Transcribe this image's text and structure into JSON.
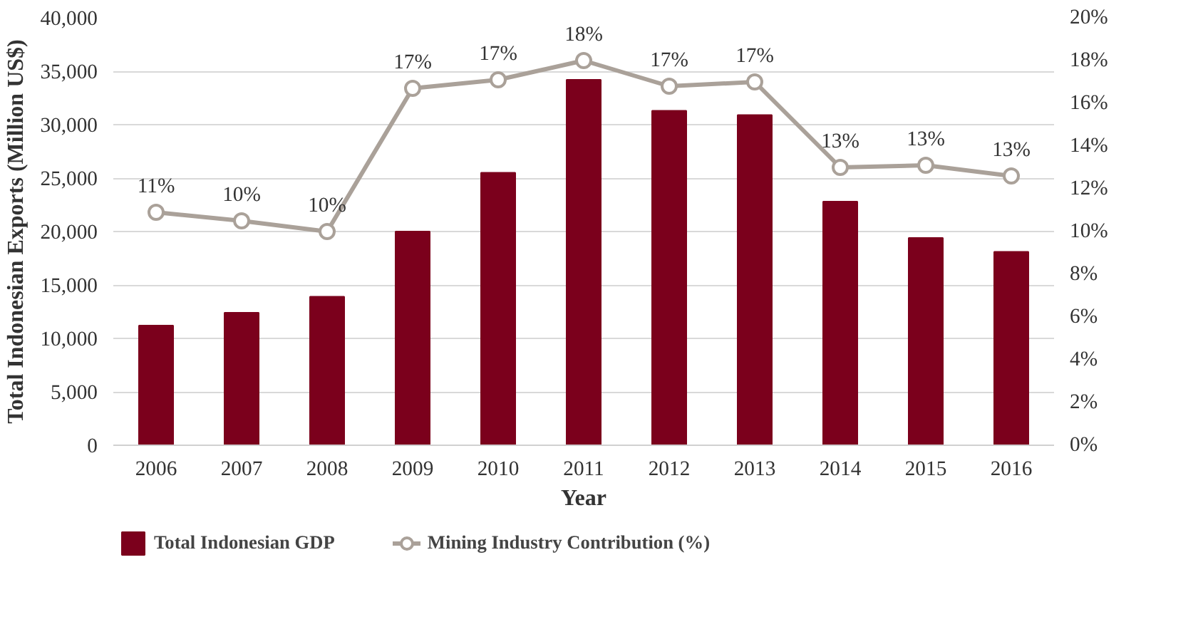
{
  "chart_data": {
    "type": "bar",
    "xlabel": "Year",
    "ylabel": "Total Indonesian Exports (Million US$)",
    "categories": [
      "2006",
      "2007",
      "2008",
      "2009",
      "2010",
      "2011",
      "2012",
      "2013",
      "2014",
      "2015",
      "2016"
    ],
    "series": [
      {
        "name": "Total Indonesian GDP",
        "color": "#7b001c",
        "values": [
          11200,
          12400,
          13900,
          20000,
          25500,
          34200,
          31300,
          30900,
          22800,
          19400,
          18100
        ]
      },
      {
        "name": "Mining Industry Contribution (%)",
        "type": "line",
        "axis": "y2",
        "color": "#aaa199",
        "values": [
          10.9,
          10.5,
          10.0,
          16.7,
          17.1,
          18.0,
          16.8,
          17.0,
          13.0,
          13.1,
          12.6
        ],
        "value_labels": [
          "11%",
          "10%",
          "10%",
          "17%",
          "17%",
          "18%",
          "17%",
          "17%",
          "13%",
          "13%",
          "13%"
        ]
      }
    ],
    "ylim": [
      0,
      40000
    ],
    "yticks": [
      {
        "value": 0,
        "label": "0"
      },
      {
        "value": 5000,
        "label": "5,000"
      },
      {
        "value": 10000,
        "label": "10,000"
      },
      {
        "value": 15000,
        "label": "15,000"
      },
      {
        "value": 20000,
        "label": "20,000"
      },
      {
        "value": 25000,
        "label": "25,000"
      },
      {
        "value": 30000,
        "label": "30,000"
      },
      {
        "value": 35000,
        "label": "35,000"
      },
      {
        "value": 40000,
        "label": "40,000"
      }
    ],
    "y2lim": [
      0,
      20
    ],
    "y2ticks": [
      {
        "value": 0,
        "label": "0%"
      },
      {
        "value": 2,
        "label": "2%"
      },
      {
        "value": 4,
        "label": "4%"
      },
      {
        "value": 6,
        "label": "6%"
      },
      {
        "value": 8,
        "label": "8%"
      },
      {
        "value": 10,
        "label": "10%"
      },
      {
        "value": 12,
        "label": "12%"
      },
      {
        "value": 14,
        "label": "14%"
      },
      {
        "value": 16,
        "label": "16%"
      },
      {
        "value": 18,
        "label": "18%"
      },
      {
        "value": 20,
        "label": "20%"
      }
    ],
    "grid": "y",
    "legend": "bottom left",
    "marker": "circle",
    "line_style": "solid"
  }
}
